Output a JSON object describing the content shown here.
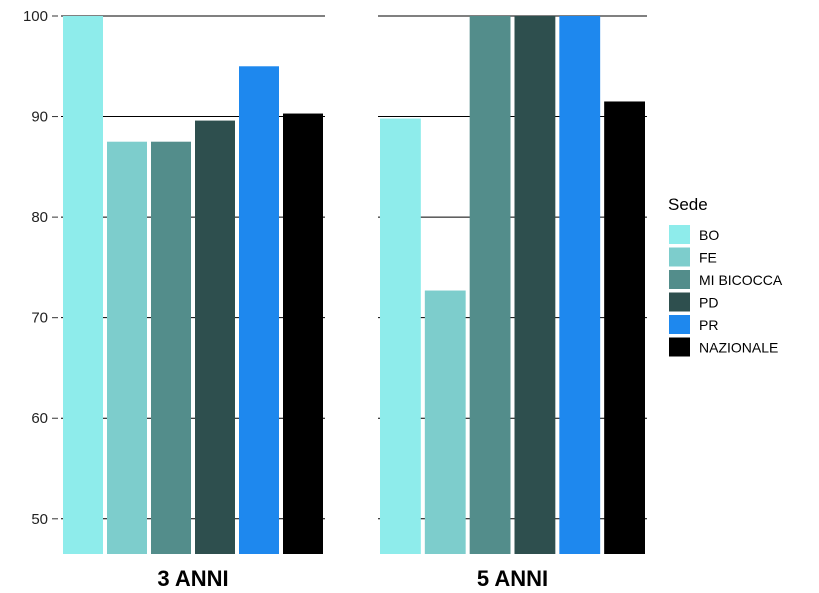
{
  "chart_data": {
    "type": "bar",
    "facet": "panels",
    "categories": [
      "BO",
      "FE",
      "MI  BICOCCA",
      "PD",
      "PR",
      "NAZIONALE"
    ],
    "colors": [
      "#8eeceb",
      "#7dcdcc",
      "#538d8b",
      "#2e4f4e",
      "#1e88ee",
      "#000000"
    ],
    "ylim": [
      46.5,
      100
    ],
    "yticks": [
      50,
      60,
      70,
      80,
      90,
      100
    ],
    "grid": "horizontal",
    "legend": {
      "title": "Sede",
      "placement": "right",
      "entries": [
        "BO",
        "FE",
        "MI  BICOCCA",
        "PD",
        "PR",
        "NAZIONALE"
      ]
    },
    "panels": [
      {
        "label": "3 ANNI",
        "values": [
          100,
          87.5,
          87.5,
          89.6,
          95.0,
          90.3
        ]
      },
      {
        "label": "5 ANNI",
        "values": [
          89.8,
          72.7,
          100,
          100,
          100,
          91.5
        ]
      }
    ]
  }
}
